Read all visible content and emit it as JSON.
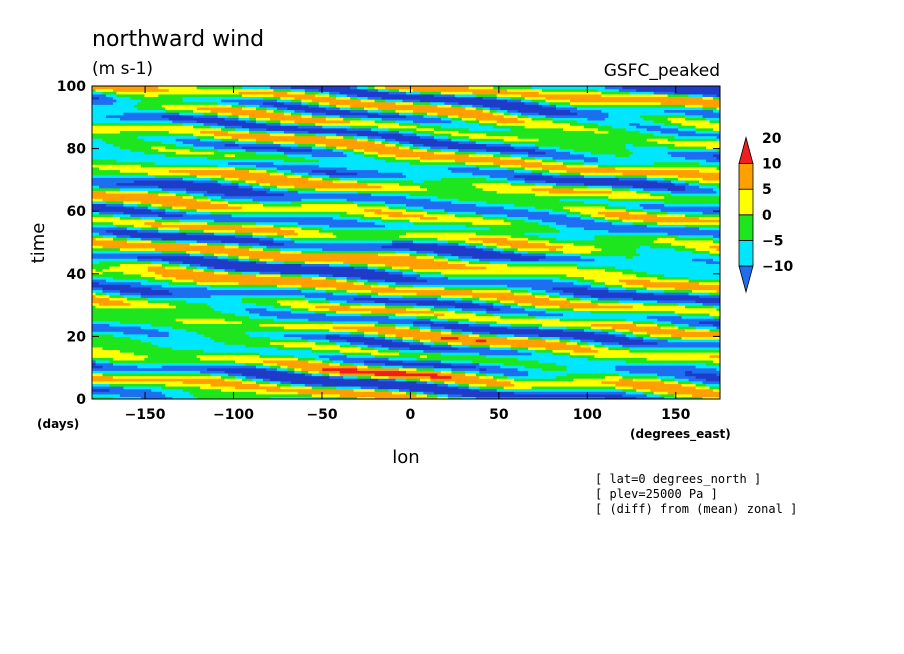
{
  "chart_data": {
    "type": "heatmap",
    "title": "northward wind",
    "units": "(m s-1)",
    "model": "GSFC_peaked",
    "xlabel": "lon",
    "xunits": "(degrees_east)",
    "ylabel": "time",
    "yunits": "(days)",
    "xlim": [
      -180,
      175
    ],
    "ylim": [
      0,
      100
    ],
    "x_ticks": [
      -150,
      -100,
      -50,
      0,
      50,
      100,
      150
    ],
    "y_ticks": [
      0,
      20,
      40,
      60,
      80,
      100
    ],
    "colorbar": {
      "levels": [
        -10,
        -5,
        0,
        5,
        10,
        20
      ],
      "labels": [
        "-10",
        "-5",
        "0",
        "5",
        "10",
        "20"
      ],
      "colors": [
        "#1e6ef0",
        "#00e6ff",
        "#1ee61e",
        "#ffff00",
        "#ffa000",
        "#f01e1e"
      ],
      "below_color": "#1e3cc8",
      "extend": "both"
    },
    "annotations": [
      "[ lat=0 degrees_north ]",
      "[ plev=25000 Pa ]",
      "[ (diff) from (mean) zonal ]"
    ]
  }
}
